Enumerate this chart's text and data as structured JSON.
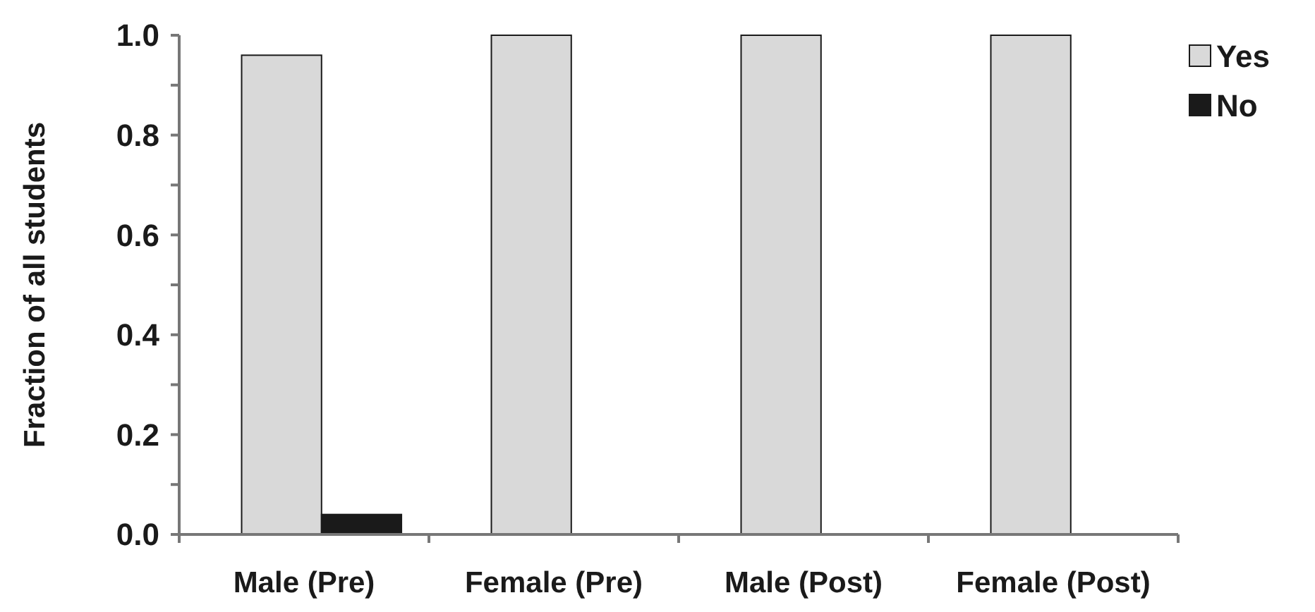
{
  "chart_data": {
    "type": "bar",
    "ylabel": "Fraction of all students",
    "categories": [
      "Male (Pre)",
      "Female (Pre)",
      "Male (Post)",
      "Female (Post)"
    ],
    "series": [
      {
        "name": "Yes",
        "color": "#d9d9d9",
        "values": [
          0.96,
          1.0,
          1.0,
          1.0
        ]
      },
      {
        "name": "No",
        "color": "#1a1a1a",
        "values": [
          0.04,
          0,
          0,
          0
        ]
      }
    ],
    "ylim": [
      0,
      1
    ],
    "yticks": [
      {
        "value": 0,
        "label": "0.0"
      },
      {
        "value": 0.1,
        "label": null
      },
      {
        "value": 0.2,
        "label": "0.2"
      },
      {
        "value": 0.3,
        "label": null
      },
      {
        "value": 0.4,
        "label": "0.4"
      },
      {
        "value": 0.5,
        "label": null
      },
      {
        "value": 0.6,
        "label": "0.6"
      },
      {
        "value": 0.7,
        "label": null
      },
      {
        "value": 0.8,
        "label": "0.8"
      },
      {
        "value": 0.9,
        "label": null
      },
      {
        "value": 1,
        "label": "1.0"
      }
    ],
    "grid": false,
    "legend": "right"
  }
}
